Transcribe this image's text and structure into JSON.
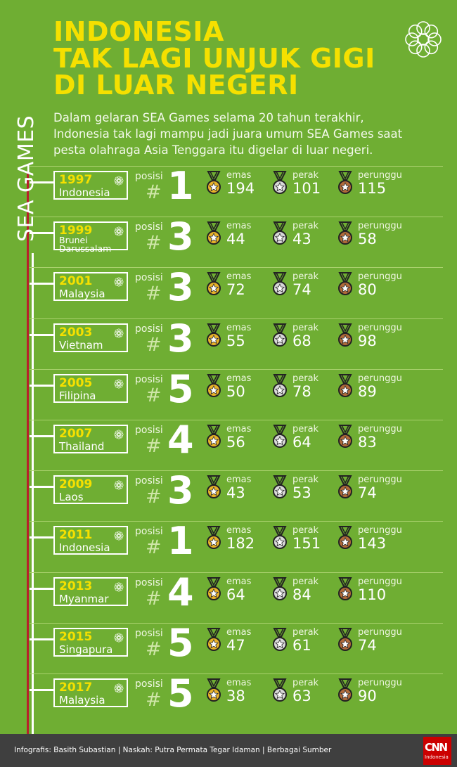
{
  "title_lines": [
    "INDONESIA",
    "TAK LAGI UNJUK GIGI",
    "DI LUAR NEGERI"
  ],
  "intro_lines": [
    "Dalam gelaran SEA Games selama 20 tahun terakhir,",
    "Indonesia tak lagi mampu jadi juara umum SEA Games saat",
    "pesta olahraga Asia Tenggara itu digelar di luar negeri."
  ],
  "side_label": "SEA GAMES",
  "labels": {
    "posisi": "posisi",
    "hash": "#",
    "gold": "emas",
    "silver": "perak",
    "bronze": "perunggu"
  },
  "colors": {
    "background": "#6fae33",
    "title": "#f5e000",
    "gold": "#e8b22a",
    "silver": "#d9d9d9",
    "bronze": "#b06a3a",
    "red_line": "#b8202b",
    "footer": "#3f3f3f"
  },
  "rows": [
    {
      "year": "1997",
      "country": "Indonesia",
      "rank": "1",
      "gold": "194",
      "silver": "101",
      "bronze": "115"
    },
    {
      "year": "1999",
      "country": "Brunei Darussalam",
      "rank": "3",
      "gold": "44",
      "silver": "43",
      "bronze": "58"
    },
    {
      "year": "2001",
      "country": "Malaysia",
      "rank": "3",
      "gold": "72",
      "silver": "74",
      "bronze": "80"
    },
    {
      "year": "2003",
      "country": "Vietnam",
      "rank": "3",
      "gold": "55",
      "silver": "68",
      "bronze": "98"
    },
    {
      "year": "2005",
      "country": "Filipina",
      "rank": "5",
      "gold": "50",
      "silver": "78",
      "bronze": "89"
    },
    {
      "year": "2007",
      "country": "Thailand",
      "rank": "4",
      "gold": "56",
      "silver": "64",
      "bronze": "83"
    },
    {
      "year": "2009",
      "country": "Laos",
      "rank": "3",
      "gold": "43",
      "silver": "53",
      "bronze": "74"
    },
    {
      "year": "2011",
      "country": "Indonesia",
      "rank": "1",
      "gold": "182",
      "silver": "151",
      "bronze": "143"
    },
    {
      "year": "2013",
      "country": "Myanmar",
      "rank": "4",
      "gold": "64",
      "silver": "84",
      "bronze": "110"
    },
    {
      "year": "2015",
      "country": "Singapura",
      "rank": "5",
      "gold": "47",
      "silver": "61",
      "bronze": "74"
    },
    {
      "year": "2017",
      "country": "Malaysia",
      "rank": "5",
      "gold": "38",
      "silver": "63",
      "bronze": "90"
    }
  ],
  "footer": {
    "credit": "Infografis: Basith Subastian | Naskah: Putra Permata Tegar Idaman | Berbagai Sumber",
    "logo_top": "CNN",
    "logo_bottom": "Indonesia"
  }
}
